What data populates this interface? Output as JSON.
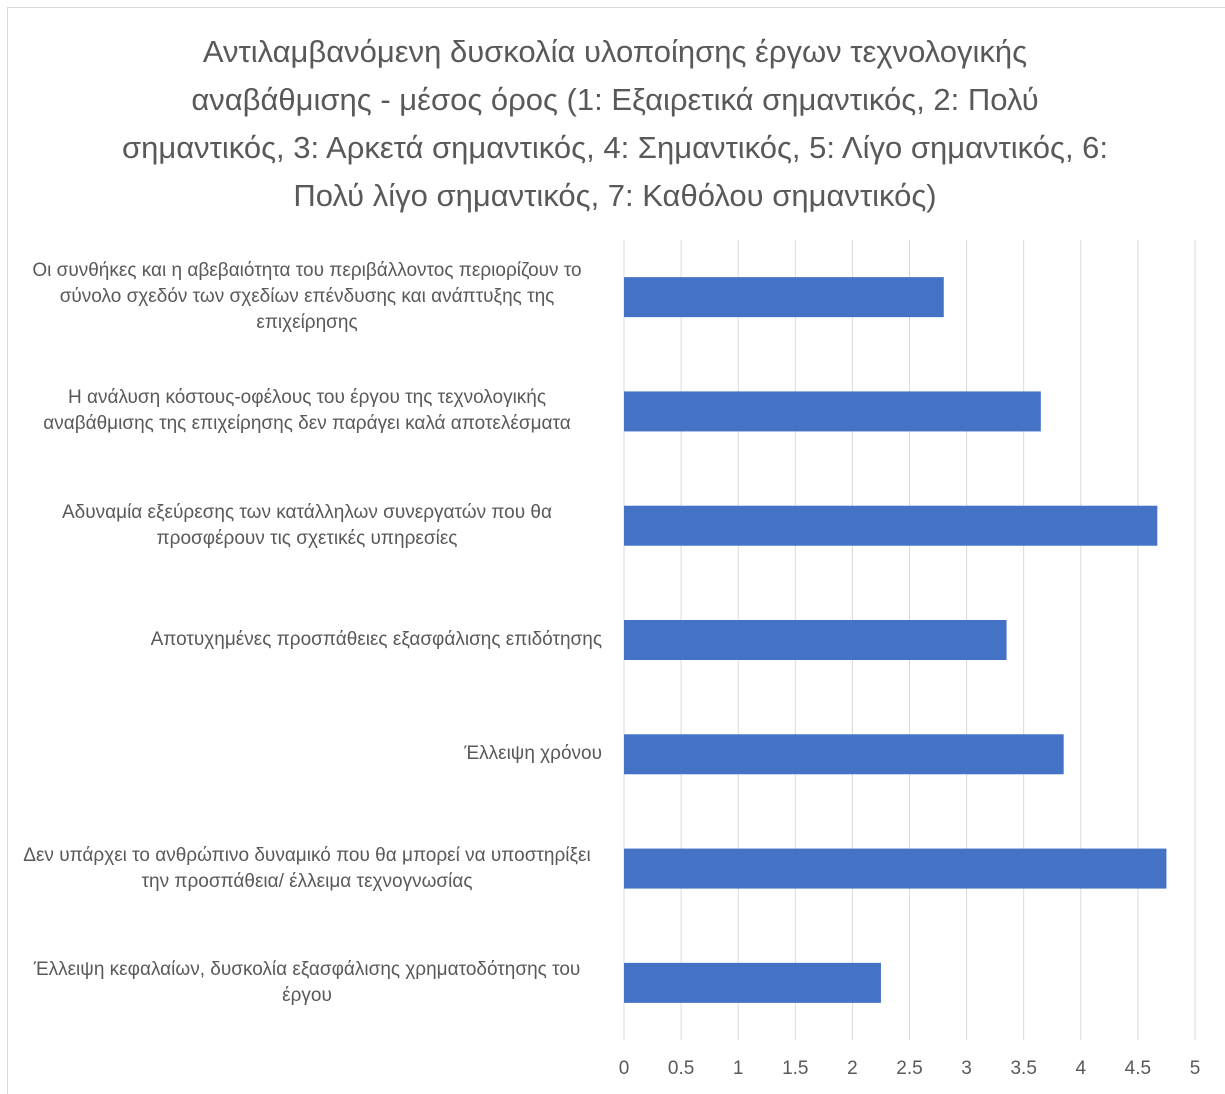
{
  "chart_data": {
    "type": "barh",
    "title": "Αντιλαμβανόμενη δυσκολία υλοποίησης έργων τεχνολογικής αναβάθμισης - μέσος όρος (1: Εξαιρετικά σημαντικός, 2: Πολύ σημαντικός, 3: Αρκετά σημαντικός, 4: Σημαντικός, 5: Λίγο σημαντικός, 6: Πολύ λίγο σημαντικός, 7: Καθόλου σημαντικός)",
    "categories": [
      "Οι συνθήκες και η αβεβαιότητα του περιβάλλοντος περιορίζουν το σύνολο σχεδόν των σχεδίων επένδυσης και ανάπτυξης της επιχείρησης",
      "Η ανάλυση κόστους-οφέλους του έργου της τεχνολογικής αναβάθμισης της επιχείρησης δεν παράγει καλά αποτελέσματα",
      "Αδυναμία εξεύρεσης των κατάλληλων συνεργατών που θα προσφέρουν τις σχετικές υπηρεσίες",
      "Αποτυχημένες προσπάθειες εξασφάλισης επιδότησης",
      "Έλλειψη χρόνου",
      "Δεν υπάρχει το ανθρώπινο δυναμικό που θα μπορεί να υποστηρίξει την προσπάθεια/ έλλειμα τεχνογνωσίας",
      "Έλλειψη κεφαλαίων, δυσκολία εξασφάλισης χρηματοδότησης του έργου"
    ],
    "values": [
      2.8,
      3.65,
      4.67,
      3.35,
      3.85,
      4.75,
      2.25
    ],
    "color": "#4472c4",
    "xlim": [
      0,
      5
    ],
    "xticks": [
      0,
      0.5,
      1,
      1.5,
      2,
      2.5,
      3,
      3.5,
      4,
      4.5,
      5
    ],
    "grid": true
  }
}
